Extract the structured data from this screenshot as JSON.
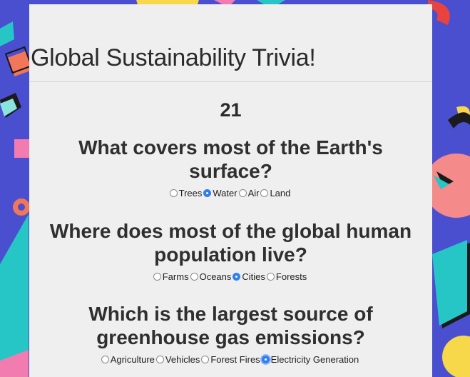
{
  "page": {
    "title": "Global Sustainability Trivia!",
    "timer": "21"
  },
  "questions": [
    {
      "text": "What covers most of the Earth's surface?",
      "options": [
        "Trees",
        "Water",
        "Air",
        "Land"
      ],
      "selected": "Water"
    },
    {
      "text": "Where does most of the global human population live?",
      "options": [
        "Farms",
        "Oceans",
        "Cities",
        "Forests"
      ],
      "selected": "Cities"
    },
    {
      "text": "Which is the largest source of greenhouse gas emissions?",
      "options": [
        "Agriculture",
        "Vehicles",
        "Forest Fires",
        "Electricity Generation"
      ],
      "selected": "Electricity Generation"
    }
  ],
  "colors": {
    "background": "#4a4fd0",
    "card": "#efefef",
    "accent": "#2f80ed"
  }
}
